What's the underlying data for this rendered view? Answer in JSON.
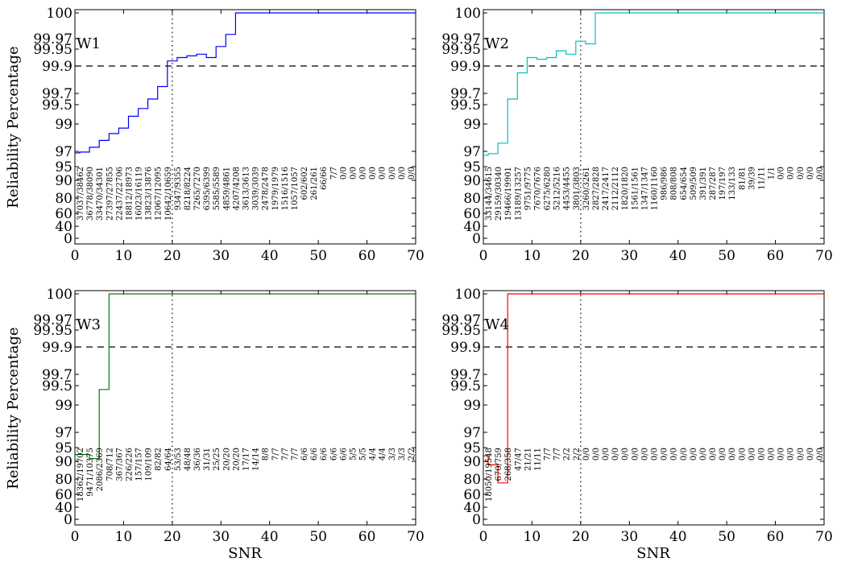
{
  "figure": {
    "ylabel": "Reliability Percentage",
    "xlabel": "SNR"
  },
  "chart_data": [
    {
      "type": "line",
      "label": "W1",
      "color": "#0000ff",
      "xlim": [
        0,
        70
      ],
      "xticks": [
        0,
        10,
        20,
        30,
        40,
        50,
        60,
        70
      ],
      "ytick_labels": [
        "0",
        "40",
        "60",
        "80",
        "90",
        "95",
        "97",
        "99",
        "99.5",
        "99.7",
        "99.9",
        "99.95",
        "99.97",
        "100"
      ],
      "threshold_y": 99.9,
      "threshold_x": 20,
      "step_x": [
        0,
        1,
        3,
        5,
        7,
        9,
        11,
        13,
        15,
        17,
        19,
        21,
        23,
        25,
        27,
        29,
        31,
        33,
        35,
        37,
        39,
        41,
        43,
        45,
        47,
        49,
        51,
        53,
        55,
        57,
        59,
        61,
        63,
        65,
        67,
        69
      ],
      "step_y": [
        96.8,
        96.9,
        97.3,
        97.8,
        98.3,
        98.7,
        99.2,
        99.4,
        99.6,
        99.75,
        99.915,
        99.925,
        99.93,
        99.935,
        99.925,
        99.955,
        99.975,
        100,
        100,
        100,
        100,
        100,
        100,
        100,
        100,
        100,
        100,
        100,
        100,
        100,
        100,
        100,
        100,
        100,
        100,
        100
      ],
      "counts": [
        "37037/38462",
        "36778/38090",
        "33470/34301",
        "27397/27855",
        "22437/22706",
        "18812/18973",
        "16023/16119",
        "13823/13876",
        "12067/12095",
        "10642/10659",
        "9347/9355",
        "8218/8224",
        "7265/7270",
        "6395/6399",
        "5585/5589",
        "4859/4861",
        "4207/4208",
        "3613/3613",
        "3039/3039",
        "2478/2478",
        "1979/1979",
        "1516/1516",
        "1057/1057",
        "602/602",
        "261/261",
        "66/66",
        "7/7",
        "0/0",
        "0/0",
        "0/0",
        "0/0",
        "0/0",
        "0/0",
        "0/0",
        "0/0"
      ]
    },
    {
      "type": "line",
      "label": "W2",
      "color": "#00bfbf",
      "xlim": [
        0,
        70
      ],
      "xticks": [
        0,
        10,
        20,
        30,
        40,
        50,
        60,
        70
      ],
      "ytick_labels": [
        "0",
        "40",
        "60",
        "80",
        "90",
        "95",
        "97",
        "99",
        "99.5",
        "99.7",
        "99.9",
        "99.95",
        "99.97",
        "100"
      ],
      "threshold_y": 99.9,
      "threshold_x": 20,
      "step_x": [
        0,
        1,
        3,
        5,
        7,
        9,
        11,
        13,
        15,
        17,
        19,
        21,
        23,
        25,
        27,
        29,
        31,
        33,
        35,
        37,
        39,
        41,
        43,
        45,
        47,
        49,
        51,
        53,
        55,
        57,
        59,
        61,
        63,
        65,
        67,
        69
      ],
      "step_y": [
        96.5,
        96.7,
        97.6,
        99.6,
        99.85,
        99.925,
        99.92,
        99.925,
        99.945,
        99.935,
        99.965,
        99.96,
        100,
        100,
        100,
        100,
        100,
        100,
        100,
        100,
        100,
        100,
        100,
        100,
        100,
        100,
        100,
        100,
        100,
        100,
        100,
        100,
        100,
        100,
        100,
        100
      ],
      "counts": [
        "33144/34615",
        "29159/30340",
        "19466/19901",
        "13189/13257",
        "9751/9775",
        "7670/7676",
        "6275/6280",
        "5212/5216",
        "4453/4455",
        "3801/3803",
        "3260/3261",
        "2827/2828",
        "2417/2417",
        "2112/2112",
        "1820/1820",
        "1561/1561",
        "1347/1347",
        "1160/1160",
        "986/986",
        "808/808",
        "654/654",
        "509/509",
        "391/391",
        "287/287",
        "197/197",
        "133/133",
        "81/81",
        "39/39",
        "11/11",
        "1/1",
        "0/0",
        "0/0",
        "0/0",
        "0/0",
        "0/0"
      ]
    },
    {
      "type": "line",
      "label": "W3",
      "color": "#008000",
      "xlim": [
        0,
        70
      ],
      "xticks": [
        0,
        10,
        20,
        30,
        40,
        50,
        60,
        70
      ],
      "ytick_labels": [
        "0",
        "40",
        "60",
        "80",
        "90",
        "95",
        "97",
        "99",
        "99.5",
        "99.7",
        "99.9",
        "99.95",
        "99.97",
        "100"
      ],
      "threshold_y": 99.9,
      "threshold_x": 20,
      "step_x": [
        0,
        1,
        3,
        5,
        7,
        9,
        11,
        13,
        15,
        17,
        19,
        21,
        23,
        25,
        27,
        29,
        31,
        33,
        35,
        37,
        39,
        41,
        43,
        45,
        47,
        49,
        51,
        53,
        55,
        57,
        59,
        61,
        63,
        65,
        67,
        69
      ],
      "step_y": [
        92.5,
        92.5,
        91,
        99.4,
        100,
        100,
        100,
        100,
        100,
        100,
        100,
        100,
        100,
        100,
        100,
        100,
        100,
        100,
        100,
        100,
        100,
        100,
        100,
        100,
        100,
        100,
        100,
        100,
        100,
        100,
        100,
        100,
        100,
        100,
        100,
        100
      ],
      "counts": [
        "18362/19702",
        "9471/10375",
        "2086/2369",
        "708/712",
        "367/367",
        "226/226",
        "157/157",
        "109/109",
        "82/82",
        "64/64",
        "53/53",
        "48/48",
        "36/36",
        "31/31",
        "25/25",
        "20/20",
        "20/20",
        "17/17",
        "14/14",
        "8/8",
        "7/7",
        "7/7",
        "7/7",
        "6/6",
        "6/6",
        "6/6",
        "6/6",
        "6/6",
        "5/5",
        "5/5",
        "4/4",
        "4/4",
        "3/3",
        "3/3",
        "2/2"
      ]
    },
    {
      "type": "line",
      "label": "W4",
      "color": "#ff0000",
      "xlim": [
        0,
        70
      ],
      "xticks": [
        0,
        10,
        20,
        30,
        40,
        50,
        60,
        70
      ],
      "ytick_labels": [
        "0",
        "40",
        "60",
        "80",
        "90",
        "95",
        "97",
        "99",
        "99.5",
        "99.7",
        "99.9",
        "99.95",
        "99.97",
        "100"
      ],
      "threshold_y": 99.9,
      "threshold_x": 20,
      "step_x": [
        0,
        1,
        3,
        5,
        7,
        9,
        11,
        13,
        15,
        17,
        19,
        21,
        23,
        25,
        27,
        29,
        31,
        33,
        35,
        37,
        39,
        41,
        43,
        45,
        47,
        49,
        51,
        53,
        55,
        57,
        59,
        61,
        63,
        65,
        67,
        69
      ],
      "step_y": [
        92,
        88,
        75,
        100,
        100,
        100,
        100,
        100,
        100,
        100,
        100,
        100,
        100,
        100,
        100,
        100,
        100,
        100,
        100,
        100,
        100,
        100,
        100,
        100,
        100,
        100,
        100,
        100,
        100,
        100,
        100,
        100,
        100,
        100,
        100,
        100
      ],
      "counts": [
        "18050/19548",
        "670/759",
        "268/358",
        "47/47",
        "21/21",
        "11/11",
        "7/7",
        "7/7",
        "2/2",
        "2/2",
        "0/0",
        "0/0",
        "0/0",
        "0/0",
        "0/0",
        "0/0",
        "0/0",
        "0/0",
        "0/0",
        "0/0",
        "0/0",
        "0/0",
        "0/0",
        "0/0",
        "0/0",
        "0/0",
        "0/0",
        "0/0",
        "0/0",
        "0/0",
        "0/0",
        "0/0",
        "0/0",
        "0/0",
        "0/0"
      ]
    }
  ]
}
